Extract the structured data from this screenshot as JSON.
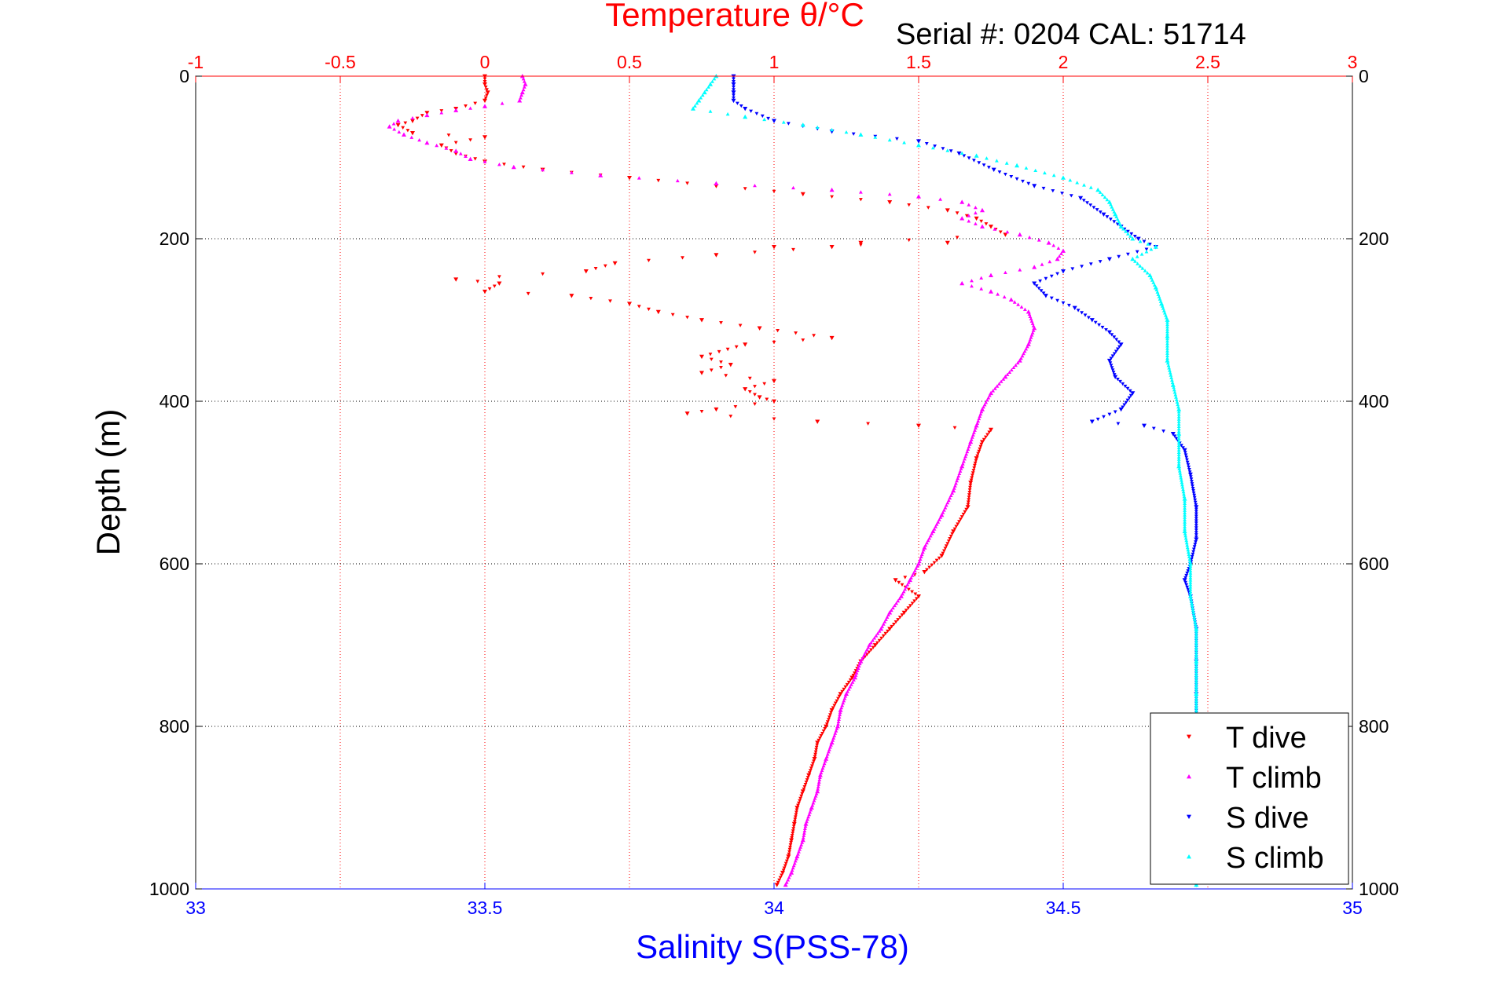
{
  "figure": {
    "top_title": "Temperature θ/°C",
    "serial_text": "Serial #: 0204  CAL: 51714",
    "bottom_title": "Salinity S(PSS-78)",
    "left_title": "Depth (m)"
  },
  "colors": {
    "temperature_axis": "#ff0000",
    "salinity_axis": "#0000ff",
    "t_dive": "#ff0000",
    "t_climb": "#ff00ff",
    "s_dive": "#0000ff",
    "s_climb": "#00ffff",
    "grid": "#000000"
  },
  "chart_data": {
    "type": "scatter",
    "title": "Temperature θ/°C",
    "annotation": "Serial #: 0204  CAL: 51714",
    "xlabel_top": "Temperature θ/°C",
    "xlabel_bottom": "Salinity S(PSS-78)",
    "ylabel": "Depth (m)",
    "temperature_axis": {
      "lim": [
        -1,
        3
      ],
      "ticks": [
        -1,
        -0.5,
        0,
        0.5,
        1,
        1.5,
        2,
        2.5,
        3
      ],
      "tick_labels": [
        "-1",
        "-0.5",
        "0",
        "0.5",
        "1",
        "1.5",
        "2",
        "2.5",
        "3"
      ]
    },
    "salinity_axis": {
      "lim": [
        33,
        35
      ],
      "ticks": [
        33,
        33.5,
        34,
        34.5,
        35
      ],
      "tick_labels": [
        "33",
        "33.5",
        "34",
        "34.5",
        "35"
      ]
    },
    "depth_axis": {
      "lim": [
        0,
        1000
      ],
      "reversed": true,
      "ticks": [
        0,
        200,
        400,
        600,
        800,
        1000
      ],
      "tick_labels": [
        "0",
        "200",
        "400",
        "600",
        "800",
        "1000"
      ]
    },
    "grid": true,
    "legend": {
      "placement": "bottom-right",
      "entries": [
        "T dive",
        "T climb",
        "S dive",
        "S climb"
      ]
    },
    "series": [
      {
        "name": "T dive",
        "axis": "temperature",
        "marker": "triangle-down",
        "points": [
          [
            0.0,
            0
          ],
          [
            0.0,
            10
          ],
          [
            0.01,
            20
          ],
          [
            0.0,
            30
          ],
          [
            -0.1,
            40
          ],
          [
            -0.2,
            45
          ],
          [
            -0.25,
            55
          ],
          [
            -0.3,
            60
          ],
          [
            -0.25,
            70
          ],
          [
            0.0,
            75
          ],
          [
            -0.15,
            85
          ],
          [
            -0.1,
            95
          ],
          [
            0.0,
            105
          ],
          [
            0.2,
            115
          ],
          [
            0.5,
            125
          ],
          [
            0.8,
            135
          ],
          [
            1.1,
            145
          ],
          [
            1.4,
            155
          ],
          [
            1.6,
            165
          ],
          [
            1.7,
            175
          ],
          [
            1.75,
            185
          ],
          [
            1.8,
            195
          ],
          [
            1.3,
            205
          ],
          [
            1.6,
            205
          ],
          [
            1.0,
            210
          ],
          [
            1.2,
            210
          ],
          [
            0.8,
            220
          ],
          [
            0.45,
            230
          ],
          [
            0.35,
            240
          ],
          [
            -0.1,
            250
          ],
          [
            0.05,
            255
          ],
          [
            0.0,
            265
          ],
          [
            0.3,
            270
          ],
          [
            0.5,
            280
          ],
          [
            0.6,
            290
          ],
          [
            0.75,
            300
          ],
          [
            0.95,
            310
          ],
          [
            1.2,
            322
          ],
          [
            0.9,
            330
          ],
          [
            0.75,
            345
          ],
          [
            0.85,
            355
          ],
          [
            0.75,
            365
          ],
          [
            1.0,
            375
          ],
          [
            0.9,
            385
          ],
          [
            0.95,
            395
          ],
          [
            1.0,
            400
          ],
          [
            0.8,
            410
          ],
          [
            0.7,
            415
          ],
          [
            1.15,
            425
          ],
          [
            1.5,
            430
          ],
          [
            1.75,
            435
          ],
          [
            1.72,
            450
          ],
          [
            1.7,
            470
          ],
          [
            1.68,
            500
          ],
          [
            1.67,
            530
          ],
          [
            1.62,
            560
          ],
          [
            1.58,
            590
          ],
          [
            1.52,
            610
          ],
          [
            1.42,
            620
          ],
          [
            1.5,
            640
          ],
          [
            1.45,
            660
          ],
          [
            1.4,
            680
          ],
          [
            1.35,
            700
          ],
          [
            1.3,
            720
          ],
          [
            1.27,
            740
          ],
          [
            1.23,
            760
          ],
          [
            1.2,
            780
          ],
          [
            1.18,
            800
          ],
          [
            1.15,
            820
          ],
          [
            1.14,
            840
          ],
          [
            1.12,
            860
          ],
          [
            1.1,
            880
          ],
          [
            1.08,
            900
          ],
          [
            1.07,
            920
          ],
          [
            1.06,
            940
          ],
          [
            1.05,
            960
          ],
          [
            1.03,
            980
          ],
          [
            1.01,
            995
          ]
        ]
      },
      {
        "name": "T climb",
        "axis": "temperature",
        "marker": "triangle-up",
        "points": [
          [
            0.13,
            0
          ],
          [
            0.14,
            10
          ],
          [
            0.13,
            20
          ],
          [
            0.12,
            30
          ],
          [
            0.0,
            37
          ],
          [
            -0.1,
            42
          ],
          [
            -0.2,
            48
          ],
          [
            -0.3,
            55
          ],
          [
            -0.33,
            62
          ],
          [
            -0.28,
            72
          ],
          [
            -0.2,
            82
          ],
          [
            -0.1,
            92
          ],
          [
            -0.05,
            102
          ],
          [
            0.1,
            112
          ],
          [
            0.4,
            122
          ],
          [
            0.8,
            132
          ],
          [
            1.2,
            140
          ],
          [
            1.5,
            148
          ],
          [
            1.65,
            155
          ],
          [
            1.72,
            165
          ],
          [
            1.65,
            175
          ],
          [
            1.72,
            185
          ],
          [
            1.85,
            195
          ],
          [
            1.95,
            205
          ],
          [
            2.0,
            215
          ],
          [
            1.98,
            225
          ],
          [
            1.9,
            235
          ],
          [
            1.75,
            245
          ],
          [
            1.65,
            255
          ],
          [
            1.75,
            265
          ],
          [
            1.82,
            275
          ],
          [
            1.88,
            290
          ],
          [
            1.9,
            310
          ],
          [
            1.88,
            330
          ],
          [
            1.85,
            350
          ],
          [
            1.8,
            370
          ],
          [
            1.75,
            390
          ],
          [
            1.72,
            410
          ],
          [
            1.7,
            430
          ],
          [
            1.68,
            450
          ],
          [
            1.65,
            480
          ],
          [
            1.62,
            510
          ],
          [
            1.58,
            540
          ],
          [
            1.55,
            560
          ],
          [
            1.52,
            580
          ],
          [
            1.5,
            600
          ],
          [
            1.47,
            620
          ],
          [
            1.44,
            640
          ],
          [
            1.4,
            660
          ],
          [
            1.37,
            680
          ],
          [
            1.33,
            700
          ],
          [
            1.3,
            720
          ],
          [
            1.28,
            740
          ],
          [
            1.25,
            760
          ],
          [
            1.23,
            780
          ],
          [
            1.22,
            800
          ],
          [
            1.2,
            820
          ],
          [
            1.18,
            840
          ],
          [
            1.16,
            860
          ],
          [
            1.15,
            880
          ],
          [
            1.13,
            900
          ],
          [
            1.11,
            920
          ],
          [
            1.1,
            940
          ],
          [
            1.08,
            960
          ],
          [
            1.06,
            980
          ],
          [
            1.04,
            995
          ]
        ]
      },
      {
        "name": "S dive",
        "axis": "salinity",
        "marker": "triangle-down",
        "points": [
          [
            33.93,
            0
          ],
          [
            33.93,
            10
          ],
          [
            33.93,
            20
          ],
          [
            33.93,
            30
          ],
          [
            33.95,
            40
          ],
          [
            34.0,
            55
          ],
          [
            34.1,
            68
          ],
          [
            34.25,
            80
          ],
          [
            34.32,
            95
          ],
          [
            34.38,
            115
          ],
          [
            34.45,
            135
          ],
          [
            34.53,
            150
          ],
          [
            34.57,
            170
          ],
          [
            34.6,
            185
          ],
          [
            34.63,
            200
          ],
          [
            34.66,
            210
          ],
          [
            34.58,
            225
          ],
          [
            34.5,
            240
          ],
          [
            34.45,
            255
          ],
          [
            34.47,
            270
          ],
          [
            34.52,
            285
          ],
          [
            34.55,
            300
          ],
          [
            34.58,
            315
          ],
          [
            34.6,
            330
          ],
          [
            34.58,
            350
          ],
          [
            34.59,
            370
          ],
          [
            34.62,
            390
          ],
          [
            34.6,
            410
          ],
          [
            34.55,
            425
          ],
          [
            34.64,
            430
          ],
          [
            34.69,
            440
          ],
          [
            34.71,
            460
          ],
          [
            34.72,
            490
          ],
          [
            34.73,
            530
          ],
          [
            34.73,
            570
          ],
          [
            34.72,
            600
          ],
          [
            34.71,
            620
          ],
          [
            34.72,
            640
          ],
          [
            34.73,
            680
          ],
          [
            34.73,
            720
          ],
          [
            34.73,
            760
          ],
          [
            34.73,
            800
          ],
          [
            34.73,
            850
          ],
          [
            34.73,
            900
          ],
          [
            34.73,
            950
          ],
          [
            34.73,
            995
          ]
        ]
      },
      {
        "name": "S climb",
        "axis": "salinity",
        "marker": "triangle-up",
        "points": [
          [
            33.9,
            0
          ],
          [
            33.89,
            10
          ],
          [
            33.88,
            20
          ],
          [
            33.87,
            30
          ],
          [
            33.86,
            40
          ],
          [
            33.95,
            50
          ],
          [
            34.05,
            60
          ],
          [
            34.15,
            72
          ],
          [
            34.25,
            85
          ],
          [
            34.35,
            98
          ],
          [
            34.42,
            110
          ],
          [
            34.5,
            125
          ],
          [
            34.56,
            140
          ],
          [
            34.58,
            155
          ],
          [
            34.59,
            170
          ],
          [
            34.6,
            185
          ],
          [
            34.62,
            200
          ],
          [
            34.66,
            210
          ],
          [
            34.62,
            225
          ],
          [
            34.65,
            245
          ],
          [
            34.66,
            260
          ],
          [
            34.67,
            280
          ],
          [
            34.68,
            300
          ],
          [
            34.68,
            320
          ],
          [
            34.68,
            350
          ],
          [
            34.69,
            380
          ],
          [
            34.7,
            410
          ],
          [
            34.7,
            440
          ],
          [
            34.7,
            480
          ],
          [
            34.71,
            520
          ],
          [
            34.71,
            560
          ],
          [
            34.72,
            600
          ],
          [
            34.72,
            640
          ],
          [
            34.73,
            680
          ],
          [
            34.73,
            720
          ],
          [
            34.73,
            760
          ],
          [
            34.73,
            800
          ],
          [
            34.73,
            850
          ],
          [
            34.73,
            900
          ],
          [
            34.73,
            950
          ],
          [
            34.73,
            995
          ]
        ]
      }
    ]
  }
}
